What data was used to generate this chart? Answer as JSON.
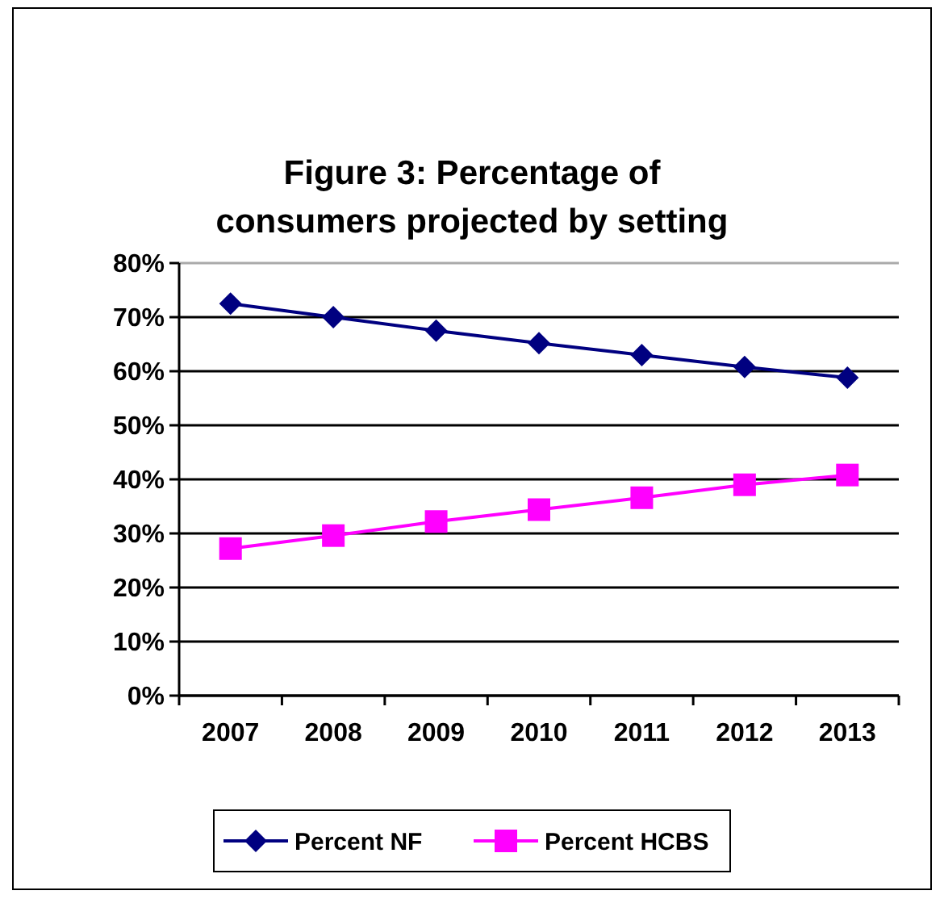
{
  "chart_data": {
    "type": "line",
    "title": "Figure 3: Percentage of consumers projected by setting",
    "categories": [
      "2007",
      "2008",
      "2009",
      "2010",
      "2011",
      "2012",
      "2013"
    ],
    "series": [
      {
        "name": "Percent NF",
        "color": "#000080",
        "marker": "diamond",
        "values": [
          72.5,
          70,
          67.5,
          65.2,
          63,
          60.8,
          58.8
        ]
      },
      {
        "name": "Percent HCBS",
        "color": "#ff00ff",
        "marker": "square",
        "values": [
          27.2,
          29.6,
          32.2,
          34.4,
          36.6,
          39,
          40.8
        ]
      }
    ],
    "ylim": [
      0,
      80
    ],
    "yticks": [
      {
        "value": 0,
        "label": "0%"
      },
      {
        "value": 10,
        "label": "10%"
      },
      {
        "value": 20,
        "label": "20%"
      },
      {
        "value": 30,
        "label": "30%"
      },
      {
        "value": 40,
        "label": "40%"
      },
      {
        "value": 50,
        "label": "50%"
      },
      {
        "value": 60,
        "label": "60%"
      },
      {
        "value": 70,
        "label": "70%"
      },
      {
        "value": 80,
        "label": "80%"
      }
    ],
    "grid": "y",
    "legend": "bottom"
  }
}
